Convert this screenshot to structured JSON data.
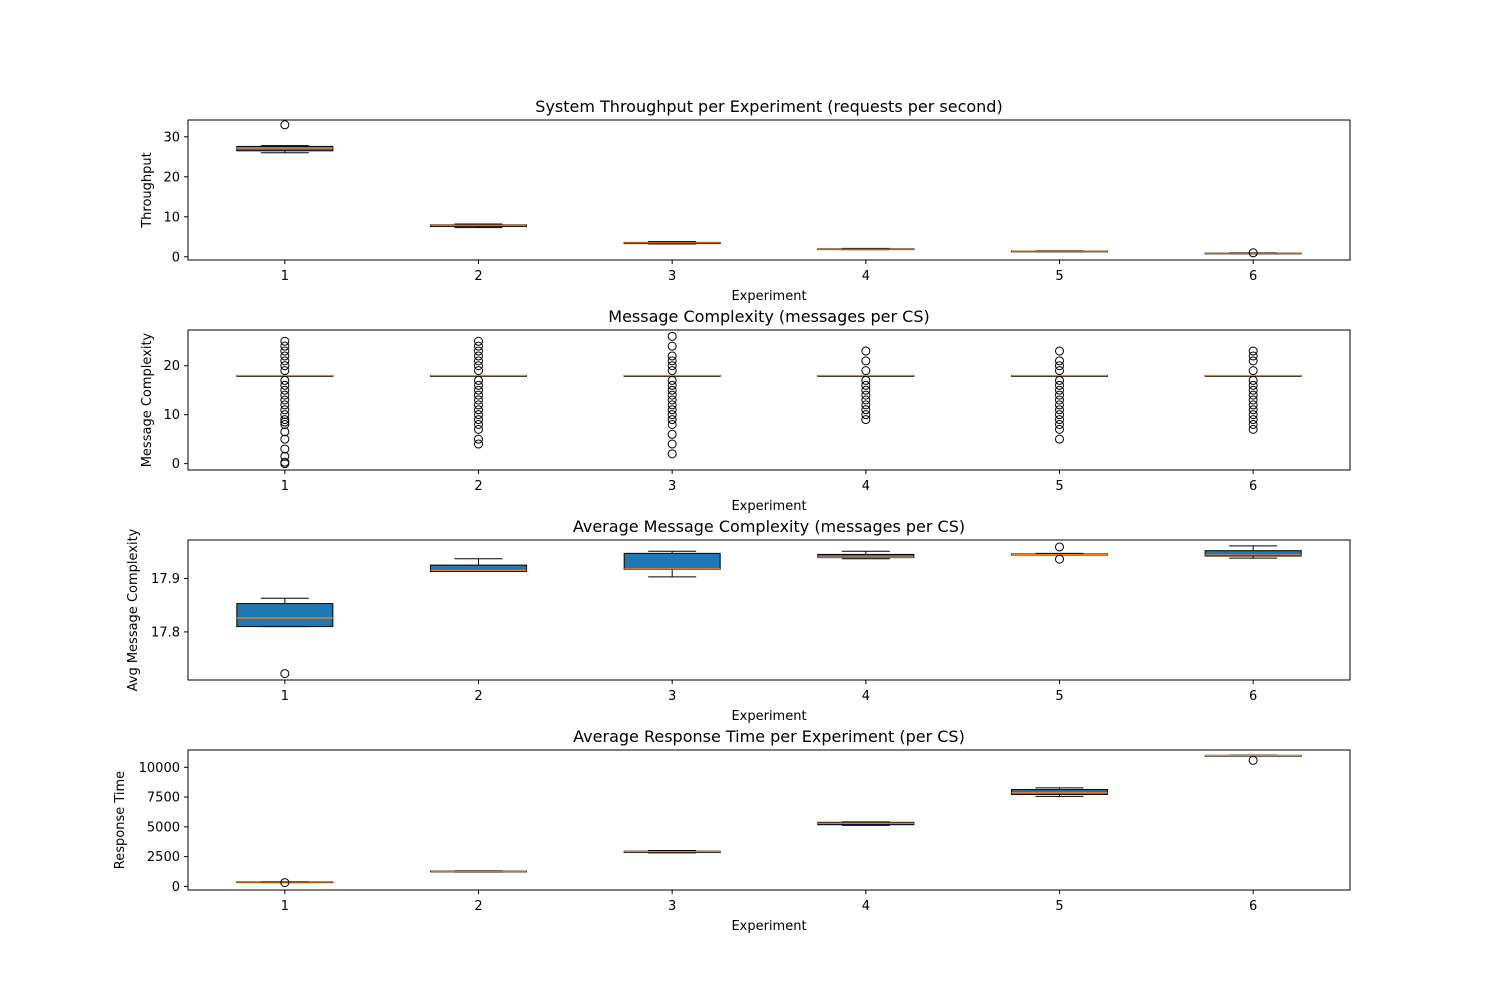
{
  "colors": {
    "box_fill": "#1f77b4",
    "median": "#ff7f0e",
    "line": "#000000",
    "background": "#ffffff"
  },
  "chart_data": [
    {
      "type": "boxplot",
      "title": "System Throughput per Experiment (requests per second)",
      "xlabel": "Experiment",
      "ylabel": "Throughput",
      "categories": [
        "1",
        "2",
        "3",
        "4",
        "5",
        "6"
      ],
      "ylim": [
        -0.8,
        34.2
      ],
      "yticks": [
        0,
        10,
        20,
        30
      ],
      "grid": false,
      "boxes": [
        {
          "whislo": 26.0,
          "q1": 26.5,
          "med": 27.2,
          "q3": 27.6,
          "whishi": 27.8,
          "fliers": [
            33.0
          ]
        },
        {
          "whislo": 7.3,
          "q1": 7.6,
          "med": 7.9,
          "q3": 8.0,
          "whishi": 8.2,
          "fliers": []
        },
        {
          "whislo": 3.2,
          "q1": 3.3,
          "med": 3.5,
          "q3": 3.6,
          "whishi": 3.8,
          "fliers": []
        },
        {
          "whislo": 1.8,
          "q1": 1.8,
          "med": 1.9,
          "q3": 2.0,
          "whishi": 2.1,
          "fliers": []
        },
        {
          "whislo": 1.3,
          "q1": 1.35,
          "med": 1.4,
          "q3": 1.45,
          "whishi": 1.5,
          "fliers": []
        },
        {
          "whislo": 0.8,
          "q1": 0.85,
          "med": 0.9,
          "q3": 0.95,
          "whishi": 1.0,
          "fliers": [
            1.0
          ]
        }
      ]
    },
    {
      "type": "boxplot",
      "title": "Message Complexity (messages per CS)",
      "xlabel": "Experiment",
      "ylabel": "Message Complexity",
      "categories": [
        "1",
        "2",
        "3",
        "4",
        "5",
        "6"
      ],
      "ylim": [
        -1.3,
        27.3
      ],
      "yticks": [
        0,
        10,
        20
      ],
      "grid": false,
      "boxes": [
        {
          "whislo": 18,
          "q1": 18,
          "med": 18,
          "q3": 18,
          "whishi": 18,
          "fliers": [
            0,
            0.3,
            1.5,
            3,
            5,
            6.5,
            8,
            8.5,
            9,
            10,
            11,
            12,
            13,
            14,
            15,
            16,
            17,
            19,
            20,
            21,
            22,
            23,
            24,
            25
          ]
        },
        {
          "whislo": 18,
          "q1": 18,
          "med": 18,
          "q3": 18,
          "whishi": 18,
          "fliers": [
            4,
            5,
            7,
            8,
            9,
            10,
            11,
            12,
            13,
            14,
            15,
            16,
            17,
            19,
            20,
            21,
            22,
            23,
            24,
            25
          ]
        },
        {
          "whislo": 18,
          "q1": 18,
          "med": 18,
          "q3": 18,
          "whishi": 18,
          "fliers": [
            2,
            4,
            6,
            8,
            9,
            10,
            11,
            12,
            13,
            14,
            15,
            16,
            17,
            19,
            20,
            21,
            22,
            24,
            26
          ]
        },
        {
          "whislo": 18,
          "q1": 18,
          "med": 18,
          "q3": 18,
          "whishi": 18,
          "fliers": [
            9,
            10,
            11,
            12,
            13,
            14,
            15,
            16,
            17,
            19,
            21,
            23
          ]
        },
        {
          "whislo": 18,
          "q1": 18,
          "med": 18,
          "q3": 18,
          "whishi": 18,
          "fliers": [
            5,
            7,
            8,
            9,
            10,
            11,
            12,
            13,
            14,
            15,
            16,
            17,
            19,
            20,
            21,
            23
          ]
        },
        {
          "whislo": 18,
          "q1": 18,
          "med": 18,
          "q3": 18,
          "whishi": 18,
          "fliers": [
            7,
            8,
            9,
            10,
            11,
            12,
            13,
            14,
            15,
            16,
            17,
            19,
            21,
            22,
            23
          ]
        }
      ]
    },
    {
      "type": "boxplot",
      "title": "Average Message Complexity (messages per CS)",
      "xlabel": "Experiment",
      "ylabel": "Avg Message Complexity",
      "categories": [
        "1",
        "2",
        "3",
        "4",
        "5",
        "6"
      ],
      "ylim": [
        17.71,
        17.972
      ],
      "yticks": [
        17.8,
        17.9
      ],
      "ytick_labels": [
        "17.8",
        "17.9"
      ],
      "grid": false,
      "boxes": [
        {
          "whislo": 17.81,
          "q1": 17.81,
          "med": 17.826,
          "q3": 17.853,
          "whishi": 17.863,
          "fliers": [
            17.722
          ]
        },
        {
          "whislo": 17.913,
          "q1": 17.913,
          "med": 17.915,
          "q3": 17.925,
          "whishi": 17.937,
          "fliers": []
        },
        {
          "whislo": 17.903,
          "q1": 17.917,
          "med": 17.918,
          "q3": 17.947,
          "whishi": 17.951,
          "fliers": []
        },
        {
          "whislo": 17.937,
          "q1": 17.939,
          "med": 17.94,
          "q3": 17.945,
          "whishi": 17.951,
          "fliers": []
        },
        {
          "whislo": 17.944,
          "q1": 17.944,
          "med": 17.945,
          "q3": 17.946,
          "whishi": 17.947,
          "fliers": [
            17.936,
            17.959
          ]
        },
        {
          "whislo": 17.938,
          "q1": 17.942,
          "med": 17.944,
          "q3": 17.952,
          "whishi": 17.961,
          "fliers": []
        }
      ]
    },
    {
      "type": "boxplot",
      "title": "Average Response Time per Experiment (per CS)",
      "xlabel": "Experiment",
      "ylabel": "Response Time",
      "categories": [
        "1",
        "2",
        "3",
        "4",
        "5",
        "6"
      ],
      "ylim": [
        -300,
        11450
      ],
      "yticks": [
        0,
        2500,
        5000,
        7500,
        10000
      ],
      "grid": false,
      "boxes": [
        {
          "whislo": 320,
          "q1": 340,
          "med": 370,
          "q3": 390,
          "whishi": 410,
          "fliers": [
            320
          ]
        },
        {
          "whislo": 1220,
          "q1": 1240,
          "med": 1270,
          "q3": 1290,
          "whishi": 1320,
          "fliers": []
        },
        {
          "whislo": 2820,
          "q1": 2850,
          "med": 2920,
          "q3": 2960,
          "whishi": 3020,
          "fliers": []
        },
        {
          "whislo": 5120,
          "q1": 5180,
          "med": 5300,
          "q3": 5380,
          "whishi": 5420,
          "fliers": []
        },
        {
          "whislo": 7560,
          "q1": 7720,
          "med": 7860,
          "q3": 8130,
          "whishi": 8270,
          "fliers": []
        },
        {
          "whislo": 10950,
          "q1": 10970,
          "med": 10990,
          "q3": 11000,
          "whishi": 11020,
          "fliers": [
            10580
          ]
        }
      ]
    }
  ]
}
